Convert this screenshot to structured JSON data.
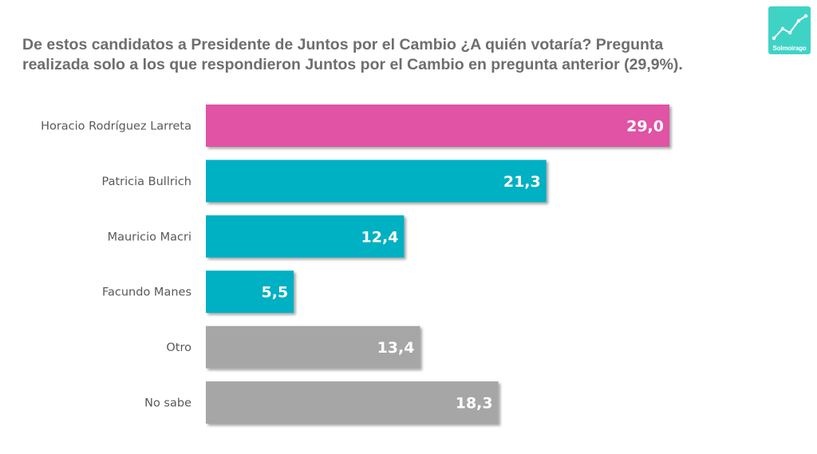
{
  "title_lines": [
    "De estos candidatos a Presidente de Juntos por el Cambio ¿A quién votaría? Pregunta",
    "realizada solo a los que respondieron Juntos por el Cambio en pregunta anterior (29,9%)."
  ],
  "logo": {
    "text": "Solmoirago",
    "icon": "line-chart-icon",
    "color": "#3fd3c6"
  },
  "chart_data": {
    "type": "bar",
    "orientation": "horizontal",
    "categories": [
      "Horacio Rodríguez Larreta",
      "Patricia Bullrich",
      "Mauricio Macri",
      "Facundo Manes",
      "Otro",
      "No sabe"
    ],
    "values": [
      29.0,
      21.3,
      12.4,
      5.5,
      13.4,
      18.3
    ],
    "value_labels": [
      "29,0",
      "21,3",
      "12,4",
      "5,5",
      "13,4",
      "18,3"
    ],
    "colors": [
      "#e052a5",
      "#00b0c3",
      "#00b0c3",
      "#00b0c3",
      "#a6a6a6",
      "#a6a6a6"
    ],
    "xlim": [
      0,
      29.0
    ],
    "grid": false,
    "legend": "none"
  }
}
